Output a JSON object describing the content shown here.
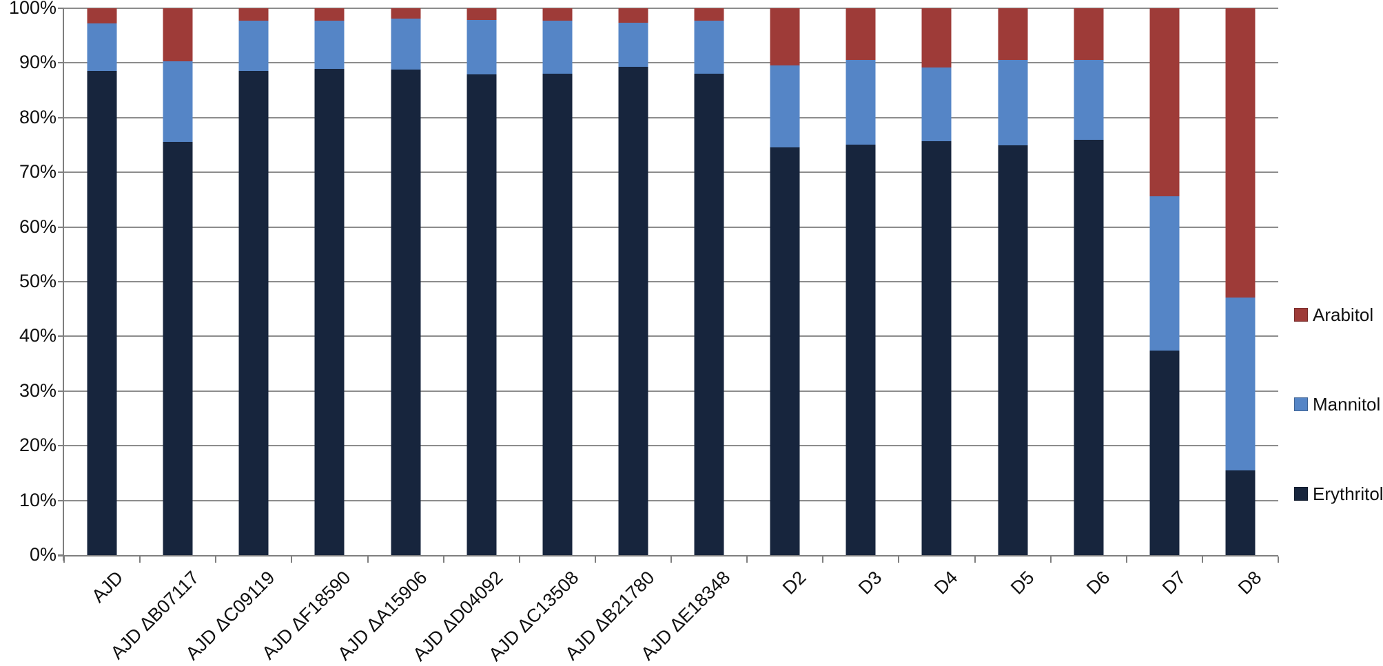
{
  "chart_data": {
    "type": "bar",
    "variant": "stacked-100-percent-column",
    "title": "",
    "xlabel": "",
    "ylabel": "",
    "ylim": [
      0,
      100
    ],
    "grid": true,
    "legend_position": "right",
    "ytick_labels": [
      "100%",
      "90%",
      "80%",
      "70%",
      "60%",
      "50%",
      "40%",
      "30%",
      "20%",
      "10%",
      "0%"
    ],
    "ytick_values": [
      100,
      90,
      80,
      70,
      60,
      50,
      40,
      30,
      20,
      10,
      0
    ],
    "categories": [
      "AJD",
      "AJD ΔB07117",
      "AJD ΔC09119",
      "AJD ΔF18590",
      "AJD ΔA15906",
      "AJD ΔD04092",
      "AJD ΔC13508",
      "AJD ΔB21780",
      "AJD ΔE18348",
      "D2",
      "D3",
      "D4",
      "D5",
      "D6",
      "D7",
      "D8"
    ],
    "series": [
      {
        "name": "Erythritol",
        "color": "#17253D",
        "values": [
          88.5,
          75.6,
          88.5,
          88.9,
          88.8,
          87.9,
          88.0,
          89.3,
          88.1,
          74.6,
          75.1,
          75.7,
          74.9,
          76.0,
          37.4,
          15.5
        ]
      },
      {
        "name": "Mannitol",
        "color": "#5585C6",
        "values": [
          8.7,
          14.7,
          9.2,
          8.8,
          9.3,
          10.0,
          9.7,
          8.1,
          9.6,
          14.9,
          15.4,
          13.5,
          15.6,
          14.5,
          28.2,
          31.6
        ]
      },
      {
        "name": "Arabitol",
        "color": "#9E3B38",
        "values": [
          2.8,
          9.7,
          2.3,
          2.3,
          1.9,
          2.1,
          2.3,
          2.6,
          2.3,
          10.5,
          9.5,
          10.8,
          9.5,
          9.5,
          34.4,
          52.9
        ]
      }
    ],
    "legend_order": [
      "Arabitol",
      "Mannitol",
      "Erythritol"
    ]
  },
  "colors": {
    "background": "#FFFFFF",
    "gridline": "#8C8C8C",
    "axis": "#7F7F7F",
    "text": "#111111"
  }
}
